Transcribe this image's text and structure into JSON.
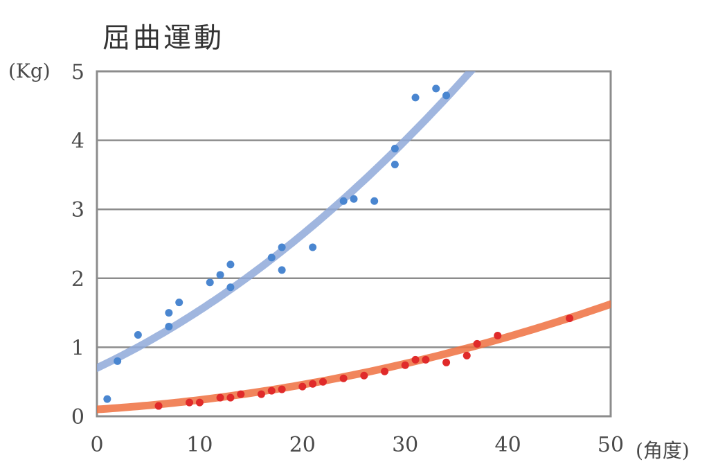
{
  "chart_data": {
    "type": "scatter",
    "title": "屈曲運動",
    "ylabel": "(Kg)",
    "xlabel": "(角度)",
    "xlim": [
      0,
      50
    ],
    "ylim": [
      0,
      5
    ],
    "xticks": [
      0,
      10,
      20,
      30,
      40,
      50
    ],
    "yticks": [
      0,
      1,
      2,
      3,
      4,
      5
    ],
    "grid": "horizontal",
    "series": [
      {
        "color": "#4a86d0",
        "trend_color": "#8fa9d9",
        "points": [
          [
            1,
            0.25
          ],
          [
            2,
            0.8
          ],
          [
            4,
            1.18
          ],
          [
            7,
            1.5
          ],
          [
            7,
            1.3
          ],
          [
            8,
            1.65
          ],
          [
            11,
            1.94
          ],
          [
            12,
            2.05
          ],
          [
            13,
            2.2
          ],
          [
            13,
            1.87
          ],
          [
            17,
            2.3
          ],
          [
            18,
            2.12
          ],
          [
            18,
            2.45
          ],
          [
            21,
            2.45
          ],
          [
            24,
            3.12
          ],
          [
            25,
            3.15
          ],
          [
            27,
            3.12
          ],
          [
            29,
            3.65
          ],
          [
            29,
            3.88
          ],
          [
            31,
            4.62
          ],
          [
            33,
            4.75
          ],
          [
            34,
            4.65
          ]
        ],
        "trend": [
          0.7,
          0.0706,
          0.00131
        ]
      },
      {
        "color": "#e02a2a",
        "trend_color": "#ef7040",
        "points": [
          [
            6,
            0.15
          ],
          [
            9,
            0.2
          ],
          [
            10,
            0.2
          ],
          [
            12,
            0.27
          ],
          [
            13,
            0.27
          ],
          [
            14,
            0.32
          ],
          [
            16,
            0.32
          ],
          [
            17,
            0.37
          ],
          [
            18,
            0.39
          ],
          [
            20,
            0.43
          ],
          [
            21,
            0.47
          ],
          [
            22,
            0.5
          ],
          [
            24,
            0.55
          ],
          [
            26,
            0.59
          ],
          [
            28,
            0.65
          ],
          [
            30,
            0.74
          ],
          [
            31,
            0.82
          ],
          [
            32,
            0.82
          ],
          [
            34,
            0.78
          ],
          [
            36,
            0.88
          ],
          [
            37,
            1.05
          ],
          [
            39,
            1.17
          ],
          [
            46,
            1.42
          ]
        ],
        "trend": [
          0.1,
          0.0095,
          0.00042
        ]
      }
    ]
  }
}
